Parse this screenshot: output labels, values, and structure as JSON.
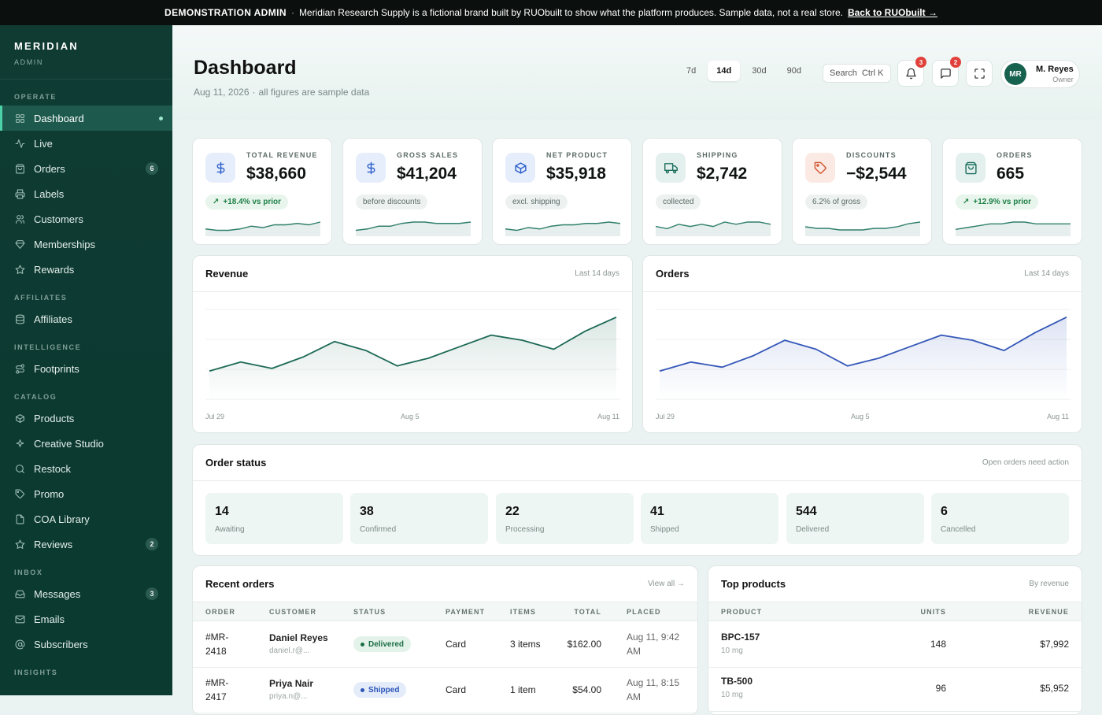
{
  "banner": {
    "label": "DEMONSTRATION ADMIN",
    "separator": "·",
    "text": "Meridian Research Supply is a fictional brand built by RUObuilt to show what the platform produces. Sample data, not a real store.",
    "link": "Back to RUObuilt →"
  },
  "sidebar": {
    "brand": "MERIDIAN",
    "brand_sub": "ADMIN",
    "sections": [
      {
        "label": "OPERATE",
        "items": [
          {
            "label": "Dashboard",
            "icon": "grid-icon",
            "active": true
          },
          {
            "label": "Live",
            "icon": "pulse-icon"
          },
          {
            "label": "Orders",
            "icon": "bag-icon",
            "badge": "6"
          },
          {
            "label": "Labels",
            "icon": "printer-icon"
          },
          {
            "label": "Customers",
            "icon": "users-icon"
          },
          {
            "label": "Memberships",
            "icon": "gem-icon"
          },
          {
            "label": "Rewards",
            "icon": "star-icon"
          }
        ]
      },
      {
        "label": "AFFILIATES",
        "items": [
          {
            "label": "Affiliates",
            "icon": "database-icon"
          }
        ]
      },
      {
        "label": "INTELLIGENCE",
        "items": [
          {
            "label": "Footprints",
            "icon": "route-icon"
          }
        ]
      },
      {
        "label": "CATALOG",
        "items": [
          {
            "label": "Products",
            "icon": "box-icon"
          },
          {
            "label": "Creative Studio",
            "icon": "sparkle-icon"
          },
          {
            "label": "Restock",
            "icon": "search-icon"
          },
          {
            "label": "Promo",
            "icon": "tag-icon"
          },
          {
            "label": "COA Library",
            "icon": "file-icon"
          },
          {
            "label": "Reviews",
            "icon": "star-icon",
            "badge": "2"
          }
        ]
      },
      {
        "label": "INBOX",
        "items": [
          {
            "label": "Messages",
            "icon": "inbox-icon",
            "badge": "3"
          },
          {
            "label": "Emails",
            "icon": "mail-icon"
          },
          {
            "label": "Subscribers",
            "icon": "at-icon"
          }
        ]
      },
      {
        "label": "INSIGHTS",
        "items": []
      }
    ]
  },
  "header": {
    "title": "Dashboard",
    "date": "Aug 11, 2026",
    "date_sep": "·",
    "note": "all figures are sample data",
    "ranges": [
      "7d",
      "14d",
      "30d",
      "90d"
    ],
    "active_range": "14d",
    "search_placeholder": "Search",
    "search_shortcut": "Ctrl K",
    "notifications_count": "3",
    "messages_count": "2",
    "user": {
      "initials": "MR",
      "name": "M. Reyes",
      "role": "Owner"
    }
  },
  "stats": [
    {
      "label": "TOTAL REVENUE",
      "value": "$38,660",
      "chip": "+18.4% vs prior",
      "chip_arrow": "↗",
      "positive": true,
      "icon": "dollar-icon",
      "tint": "#e6eefc",
      "color": "#2c5fc9",
      "spark": [
        3,
        2,
        2,
        3,
        5,
        4,
        6,
        6,
        7,
        6,
        8
      ]
    },
    {
      "label": "GROSS SALES",
      "value": "$41,204",
      "chip": "before discounts",
      "positive": false,
      "icon": "dollar-icon",
      "tint": "#e6eefc",
      "color": "#2c5fc9",
      "spark": [
        3,
        4,
        6,
        6,
        8,
        9,
        9,
        8,
        8,
        8,
        9
      ]
    },
    {
      "label": "NET PRODUCT",
      "value": "$35,918",
      "chip": "excl. shipping",
      "positive": false,
      "icon": "box-icon",
      "tint": "#e6eefc",
      "color": "#2c5fc9",
      "spark": [
        3,
        2,
        4,
        3,
        5,
        6,
        6,
        7,
        7,
        8,
        7
      ]
    },
    {
      "label": "SHIPPING",
      "value": "$2,742",
      "chip": "collected",
      "positive": false,
      "icon": "truck-icon",
      "tint": "#e4f0ee",
      "color": "#1d6f5e",
      "spark": [
        4,
        3,
        5,
        4,
        5,
        4,
        6,
        5,
        6,
        6,
        5
      ]
    },
    {
      "label": "DISCOUNTS",
      "value": "−$2,544",
      "chip": "6.2% of gross",
      "positive": false,
      "icon": "tag-icon",
      "tint": "#fbe9e4",
      "color": "#d2552f",
      "spark": [
        5,
        4,
        4,
        3,
        3,
        3,
        4,
        4,
        5,
        7,
        8
      ]
    },
    {
      "label": "ORDERS",
      "value": "665",
      "chip": "+12.9% vs prior",
      "chip_arrow": "↗",
      "positive": true,
      "icon": "bag-icon",
      "tint": "#e4f0ee",
      "color": "#1d6f5e",
      "spark": [
        3,
        4,
        5,
        6,
        6,
        7,
        7,
        6,
        6,
        6,
        6
      ]
    }
  ],
  "revenue_chart": {
    "title": "Revenue",
    "meta": "Last 14 days",
    "x_labels": [
      "Jul 29",
      "Aug 5",
      "Aug 11"
    ],
    "color": "#1d6a55",
    "values": [
      2.2,
      2.9,
      2.4,
      3.3,
      4.5,
      3.8,
      2.6,
      3.2,
      4.1,
      5.0,
      4.6,
      3.9,
      5.3,
      6.4
    ]
  },
  "orders_chart": {
    "title": "Orders",
    "meta": "Last 14 days",
    "x_labels": [
      "Jul 29",
      "Aug 5",
      "Aug 11"
    ],
    "color": "#3457b8",
    "values": [
      2.2,
      2.9,
      2.5,
      3.4,
      4.6,
      3.9,
      2.6,
      3.2,
      4.1,
      5.0,
      4.6,
      3.8,
      5.2,
      6.4
    ]
  },
  "order_status": {
    "title": "Order status",
    "meta": "Open orders need action",
    "tiles": [
      {
        "count": "14",
        "label": "Awaiting"
      },
      {
        "count": "38",
        "label": "Confirmed"
      },
      {
        "count": "22",
        "label": "Processing"
      },
      {
        "count": "41",
        "label": "Shipped"
      },
      {
        "count": "544",
        "label": "Delivered"
      },
      {
        "count": "6",
        "label": "Cancelled"
      }
    ]
  },
  "recent_orders": {
    "title": "Recent orders",
    "view_all": "View all →",
    "columns": [
      "ORDER",
      "CUSTOMER",
      "STATUS",
      "PAYMENT",
      "ITEMS",
      "TOTAL",
      "PLACED"
    ],
    "rows": [
      {
        "order_a": "#MR-",
        "order_b": "2418",
        "customer": "Daniel Reyes",
        "email": "daniel.r@...",
        "status": "Delivered",
        "payment": "Card",
        "items": "3 items",
        "total": "$162.00",
        "placed_a": "Aug 11, 9:42",
        "placed_b": "AM"
      },
      {
        "order_a": "#MR-",
        "order_b": "2417",
        "customer": "Priya Nair",
        "email": "priya.n@...",
        "status": "Shipped",
        "payment": "Card",
        "items": "1 item",
        "total": "$54.00",
        "placed_a": "Aug 11, 8:15",
        "placed_b": "AM"
      }
    ]
  },
  "top_products": {
    "title": "Top products",
    "meta": "By revenue",
    "columns": [
      "PRODUCT",
      "UNITS",
      "REVENUE"
    ],
    "rows": [
      {
        "name": "BPC-157",
        "size": "10 mg",
        "units": "148",
        "revenue": "$7,992"
      },
      {
        "name": "TB-500",
        "size": "10 mg",
        "units": "96",
        "revenue": "$5,952"
      }
    ]
  }
}
